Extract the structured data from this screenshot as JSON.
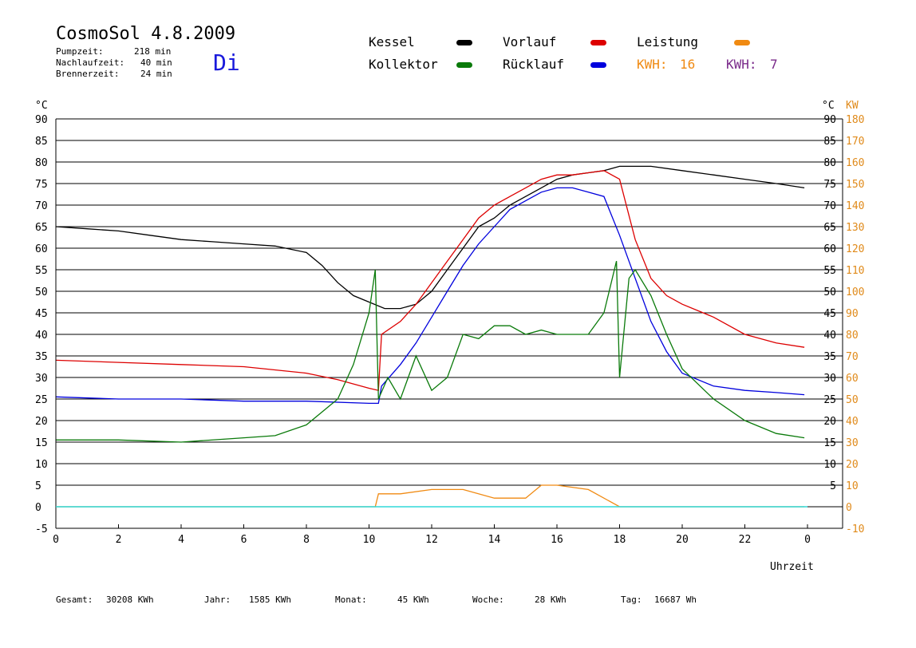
{
  "header": {
    "title": "CosmoSol 4.8.2009",
    "day": "Di",
    "info": [
      {
        "label": "Pumpzeit:",
        "value": "218 min"
      },
      {
        "label": "Nachlaufzeit:",
        "value": "40 min"
      },
      {
        "label": "Brennerzeit:",
        "value": "24 min"
      }
    ]
  },
  "legend": {
    "kessel": {
      "label": "Kessel",
      "color": "#000000"
    },
    "vorlauf": {
      "label": "Vorlauf",
      "color": "#dd0000"
    },
    "leistung": {
      "label": "Leistung",
      "color": "#f08a12"
    },
    "kollektor": {
      "label": "Kollektor",
      "color": "#0a7a0a"
    },
    "ruecklauf": {
      "label": "Rücklauf",
      "color": "#0000dd"
    },
    "kwh1": {
      "label": "KWH:",
      "value": "16",
      "color": "#f08a12"
    },
    "kwh2": {
      "label": "KWH:",
      "value": "7",
      "color": "#7a2a8a"
    }
  },
  "footer": [
    {
      "label": "Gesamt:",
      "value": "30208 KWh"
    },
    {
      "label": "Jahr:",
      "value": "1585 KWh"
    },
    {
      "label": "Monat:",
      "value": "45 KWh"
    },
    {
      "label": "Woche:",
      "value": "28 KWh"
    },
    {
      "label": "Tag:",
      "value": "16687 Wh"
    }
  ],
  "chart_data": {
    "type": "line",
    "xlabel": "Uhrzeit",
    "x_ticks": [
      "0",
      "2",
      "4",
      "6",
      "8",
      "10",
      "12",
      "14",
      "16",
      "18",
      "20",
      "22",
      "0"
    ],
    "xlim": [
      0,
      24
    ],
    "ylabel_left": "°C",
    "ylabel_right_temp": "°C",
    "ylabel_right_power": "KW",
    "ylim": [
      -5,
      90
    ],
    "y_ticks_left": [
      "90",
      "85",
      "80",
      "75",
      "70",
      "65",
      "60",
      "55",
      "50",
      "45",
      "40",
      "35",
      "30",
      "25",
      "20",
      "15",
      "10",
      "5",
      "0",
      "-5"
    ],
    "y_ticks_right_temp": [
      "90",
      "85",
      "80",
      "75",
      "70",
      "65",
      "60",
      "55",
      "50",
      "45",
      "40",
      "35",
      "30",
      "25",
      "20",
      "15",
      "10",
      "5"
    ],
    "y_ticks_right_power": [
      "180",
      "170",
      "160",
      "150",
      "140",
      "130",
      "120",
      "110",
      "100",
      "90",
      "80",
      "70",
      "60",
      "50",
      "40",
      "30",
      "20",
      "10",
      "0",
      "-10"
    ],
    "grid": "horizontal",
    "series": [
      {
        "name": "Kessel",
        "color": "#000000",
        "points": [
          [
            0,
            65
          ],
          [
            1,
            64.5
          ],
          [
            2,
            64
          ],
          [
            3,
            63
          ],
          [
            4,
            62
          ],
          [
            5,
            61.5
          ],
          [
            6,
            61
          ],
          [
            7,
            60.5
          ],
          [
            8,
            59
          ],
          [
            8.5,
            56
          ],
          [
            9,
            52
          ],
          [
            9.5,
            49
          ],
          [
            10,
            47.5
          ],
          [
            10.5,
            46
          ],
          [
            11,
            46
          ],
          [
            11.5,
            47
          ],
          [
            12,
            50
          ],
          [
            12.5,
            55
          ],
          [
            13,
            60
          ],
          [
            13.5,
            65
          ],
          [
            14,
            67
          ],
          [
            14.5,
            70
          ],
          [
            15,
            72
          ],
          [
            15.5,
            74
          ],
          [
            16,
            76
          ],
          [
            16.5,
            77
          ],
          [
            17,
            77.5
          ],
          [
            17.5,
            78
          ],
          [
            18,
            79
          ],
          [
            19,
            79
          ],
          [
            20,
            78
          ],
          [
            21,
            77
          ],
          [
            22,
            76
          ],
          [
            23,
            75
          ],
          [
            23.9,
            74
          ]
        ]
      },
      {
        "name": "Vorlauf",
        "color": "#dd0000",
        "points": [
          [
            0,
            34
          ],
          [
            2,
            33.5
          ],
          [
            4,
            33
          ],
          [
            6,
            32.5
          ],
          [
            8,
            31
          ],
          [
            9,
            29.5
          ],
          [
            10,
            27.5
          ],
          [
            10.3,
            27
          ],
          [
            10.4,
            40
          ],
          [
            11,
            43
          ],
          [
            11.5,
            47
          ],
          [
            12,
            52
          ],
          [
            12.5,
            57
          ],
          [
            13,
            62
          ],
          [
            13.5,
            67
          ],
          [
            14,
            70
          ],
          [
            14.5,
            72
          ],
          [
            15,
            74
          ],
          [
            15.5,
            76
          ],
          [
            16,
            77
          ],
          [
            16.5,
            77
          ],
          [
            17,
            77.5
          ],
          [
            17.5,
            78
          ],
          [
            18,
            76
          ],
          [
            18.5,
            62
          ],
          [
            19,
            53
          ],
          [
            19.5,
            49
          ],
          [
            20,
            47
          ],
          [
            21,
            44
          ],
          [
            22,
            40
          ],
          [
            23,
            38
          ],
          [
            23.9,
            37
          ]
        ]
      },
      {
        "name": "Rücklauf",
        "color": "#0000dd",
        "points": [
          [
            0,
            25.5
          ],
          [
            2,
            25
          ],
          [
            4,
            25
          ],
          [
            6,
            24.5
          ],
          [
            8,
            24.5
          ],
          [
            10,
            24
          ],
          [
            10.3,
            24
          ],
          [
            10.4,
            28
          ],
          [
            11,
            33
          ],
          [
            11.5,
            38
          ],
          [
            12,
            44
          ],
          [
            12.5,
            50
          ],
          [
            13,
            56
          ],
          [
            13.5,
            61
          ],
          [
            14,
            65
          ],
          [
            14.5,
            69
          ],
          [
            15,
            71
          ],
          [
            15.5,
            73
          ],
          [
            16,
            74
          ],
          [
            16.5,
            74
          ],
          [
            17,
            73
          ],
          [
            17.5,
            72
          ],
          [
            18,
            63
          ],
          [
            18.5,
            53
          ],
          [
            19,
            43
          ],
          [
            19.5,
            36
          ],
          [
            20,
            31
          ],
          [
            21,
            28
          ],
          [
            22,
            27
          ],
          [
            23,
            26.5
          ],
          [
            23.9,
            26
          ]
        ]
      },
      {
        "name": "Kollektor",
        "color": "#0a7a0a",
        "points": [
          [
            0,
            15.5
          ],
          [
            2,
            15.5
          ],
          [
            4,
            15
          ],
          [
            6,
            16
          ],
          [
            7,
            16.5
          ],
          [
            8,
            19
          ],
          [
            8.5,
            22
          ],
          [
            9,
            25
          ],
          [
            9.5,
            33
          ],
          [
            10,
            45
          ],
          [
            10.2,
            55
          ],
          [
            10.3,
            25
          ],
          [
            10.6,
            30
          ],
          [
            11,
            25
          ],
          [
            11.5,
            35
          ],
          [
            12,
            27
          ],
          [
            12.5,
            30
          ],
          [
            13,
            40
          ],
          [
            13.5,
            39
          ],
          [
            14,
            42
          ],
          [
            14.5,
            42
          ],
          [
            15,
            40
          ],
          [
            15.5,
            41
          ],
          [
            16,
            40
          ],
          [
            16.5,
            40
          ],
          [
            17,
            40
          ],
          [
            17.5,
            45
          ],
          [
            17.9,
            57
          ],
          [
            18,
            30
          ],
          [
            18.3,
            53
          ],
          [
            18.5,
            55
          ],
          [
            19,
            49
          ],
          [
            19.5,
            40
          ],
          [
            20,
            32
          ],
          [
            21,
            25
          ],
          [
            22,
            20
          ],
          [
            23,
            17
          ],
          [
            23.9,
            16
          ]
        ]
      },
      {
        "name": "Leistung",
        "color": "#f08a12",
        "points": [
          [
            0,
            0
          ],
          [
            10.2,
            0
          ],
          [
            10.3,
            3
          ],
          [
            11,
            3
          ],
          [
            12,
            4
          ],
          [
            13,
            4
          ],
          [
            14,
            2
          ],
          [
            15,
            2
          ],
          [
            15.5,
            5
          ],
          [
            16,
            5
          ],
          [
            17,
            4
          ],
          [
            18,
            0
          ],
          [
            23.9,
            0
          ]
        ]
      }
    ]
  }
}
